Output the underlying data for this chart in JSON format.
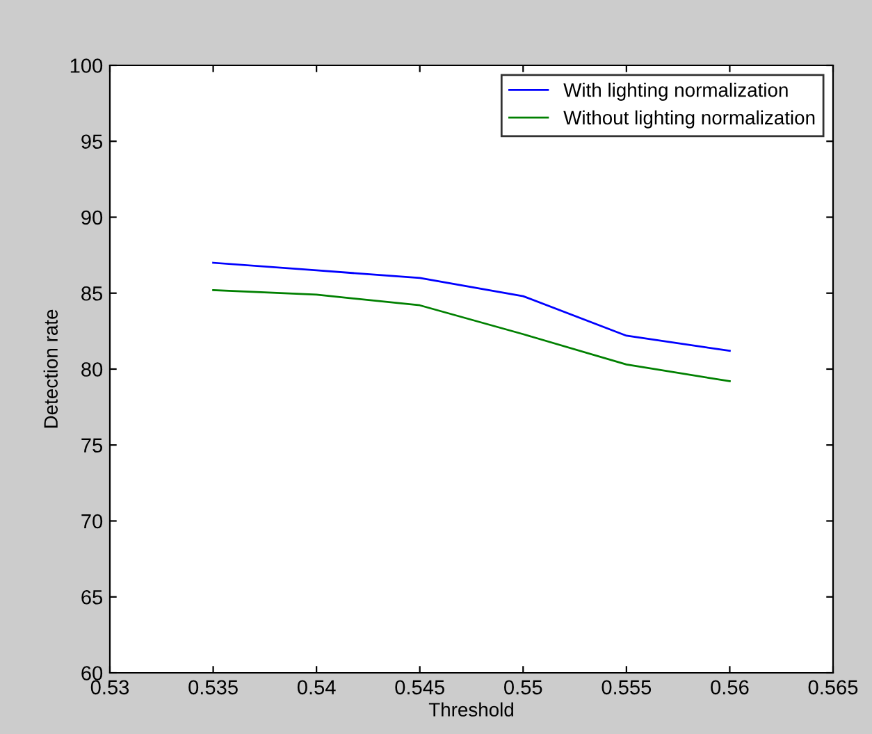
{
  "chart_data": {
    "type": "line",
    "xlabel": "Threshold",
    "ylabel": "Detection rate",
    "x": [
      0.535,
      0.54,
      0.545,
      0.55,
      0.555,
      0.56
    ],
    "series": [
      {
        "name": "With lighting normalization",
        "color": "#0000ff",
        "values": [
          87.0,
          86.5,
          86.0,
          84.8,
          82.2,
          81.2
        ]
      },
      {
        "name": "Without lighting normalization",
        "color": "#008000",
        "values": [
          85.2,
          84.9,
          84.2,
          82.3,
          80.3,
          79.2
        ]
      }
    ],
    "xlim": [
      0.53,
      0.565
    ],
    "xticks": [
      0.53,
      0.535,
      0.54,
      0.545,
      0.55,
      0.555,
      0.56,
      0.565
    ],
    "ylim": [
      60,
      100
    ],
    "yticks": [
      60,
      65,
      70,
      75,
      80,
      85,
      90,
      95,
      100
    ],
    "grid": false,
    "legend": "top right",
    "marker": "none",
    "line_style": "solid"
  }
}
